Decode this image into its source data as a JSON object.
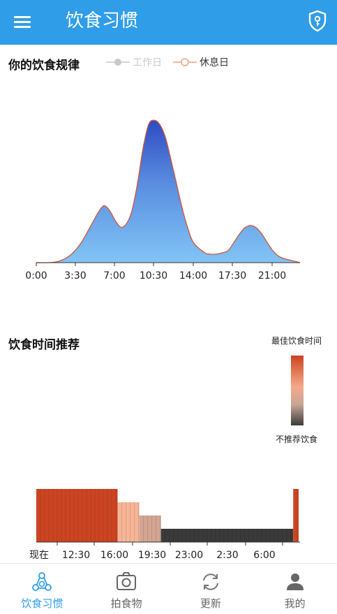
{
  "appbar": {
    "title": "饮食习惯",
    "menu_icon": "menu-icon",
    "action_icon": "shield-lock-icon",
    "color": "#2f9de8"
  },
  "pattern": {
    "title": "你的饮食规律",
    "legend": [
      {
        "label": "工作日",
        "color": "#c8c8c8"
      },
      {
        "label": "休息日",
        "color": "#f0a080"
      }
    ]
  },
  "recommend": {
    "title": "饮食时间推荐",
    "scale_top": "最佳饮食时间",
    "scale_bottom": "不推荐饮食"
  },
  "chart_data": [
    {
      "type": "area",
      "x_ticks": [
        "0:00",
        "3:30",
        "7:00",
        "10:30",
        "14:00",
        "17:30",
        "21:00"
      ],
      "x": [
        0,
        1,
        2,
        3,
        4,
        5,
        5.5,
        6,
        6.5,
        7,
        7.5,
        8,
        8.5,
        9,
        9.5,
        10,
        10.5,
        11,
        11.5,
        12,
        12.5,
        13,
        13.5,
        14,
        15,
        15.5,
        16,
        17,
        17.5,
        18,
        18.5,
        19,
        19.5,
        20,
        20.5,
        21,
        21.5,
        22,
        23,
        24
      ],
      "series": [
        {
          "name": "休息日",
          "values": [
            0,
            0,
            0.01,
            0.05,
            0.14,
            0.28,
            0.35,
            0.4,
            0.37,
            0.3,
            0.25,
            0.27,
            0.36,
            0.55,
            0.8,
            0.97,
            1.0,
            0.97,
            0.88,
            0.72,
            0.55,
            0.38,
            0.24,
            0.14,
            0.07,
            0.06,
            0.06,
            0.08,
            0.13,
            0.19,
            0.24,
            0.26,
            0.25,
            0.21,
            0.15,
            0.09,
            0.05,
            0.03,
            0.01,
            0
          ]
        }
      ],
      "ylim": [
        0,
        1.05
      ]
    },
    {
      "type": "bar",
      "x_ticks": [
        "现在",
        "12:30",
        "16:00",
        "19:30",
        "23:00",
        "2:30",
        "6:00"
      ],
      "segments": [
        {
          "start": 0,
          "end": 7.5,
          "level": 1.0,
          "color": "#cc4422"
        },
        {
          "start": 7.5,
          "end": 9.5,
          "level": 0.75,
          "color": "#f7b596"
        },
        {
          "start": 9.5,
          "end": 11.5,
          "level": 0.5,
          "color": "#d4a592"
        },
        {
          "start": 11.5,
          "end": 23.7,
          "level": 0.25,
          "color": "#3a3a3a"
        },
        {
          "start": 23.7,
          "end": 24.2,
          "level": 1.0,
          "color": "#cc4422"
        }
      ]
    }
  ],
  "nav": [
    {
      "label": "饮食习惯",
      "icon": "diet-habit-icon",
      "active": true
    },
    {
      "label": "拍食物",
      "icon": "camera-icon",
      "active": false
    },
    {
      "label": "更新",
      "icon": "refresh-icon",
      "active": false
    },
    {
      "label": "我的",
      "icon": "person-icon",
      "active": false
    }
  ]
}
